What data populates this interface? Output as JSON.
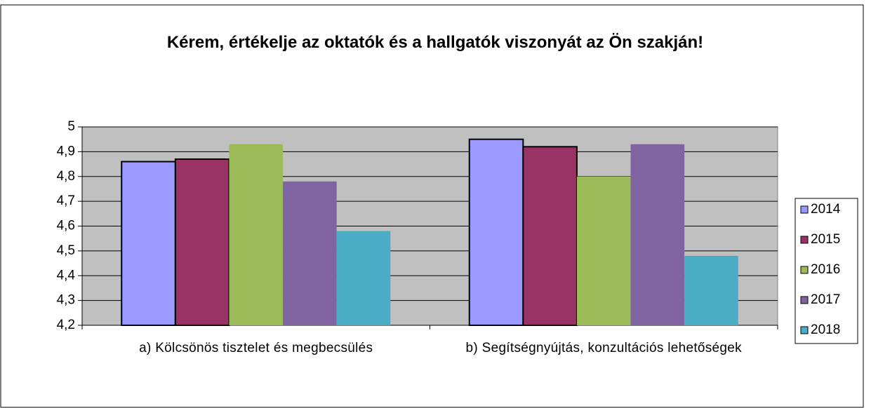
{
  "chart_data": {
    "type": "bar",
    "title": "Kérem, értékelje az oktatók és a hallgatók viszonyát az Ön szakján!",
    "categories": [
      "a) Kölcsönös tisztelet és megbecsülés",
      "b) Segítségnyújtás, konzultációs lehetőségek"
    ],
    "series": [
      {
        "name": "2014",
        "color": "#9999ff",
        "edgecolor": "#000000",
        "values": [
          4.86,
          4.95
        ]
      },
      {
        "name": "2015",
        "color": "#993366",
        "edgecolor": "#000000",
        "values": [
          4.87,
          4.92
        ]
      },
      {
        "name": "2016",
        "color": "#9bbb59",
        "values": [
          4.93,
          4.8
        ]
      },
      {
        "name": "2017",
        "color": "#8064a2",
        "values": [
          4.78,
          4.93
        ]
      },
      {
        "name": "2018",
        "color": "#4bacc6",
        "values": [
          4.58,
          4.48
        ]
      }
    ],
    "ylim": [
      4.2,
      5
    ],
    "yticks": [
      {
        "value": 4.2,
        "label": "4,2"
      },
      {
        "value": 4.3,
        "label": "4,3"
      },
      {
        "value": 4.4,
        "label": "4,4"
      },
      {
        "value": 4.5,
        "label": "4,5"
      },
      {
        "value": 4.6,
        "label": "4,6"
      },
      {
        "value": 4.7,
        "label": "4,7"
      },
      {
        "value": 4.8,
        "label": "4,8"
      },
      {
        "value": 4.9,
        "label": "4,9"
      },
      5
    ],
    "grid": true,
    "plot_background": "#c0c0c0",
    "legend": "right"
  }
}
